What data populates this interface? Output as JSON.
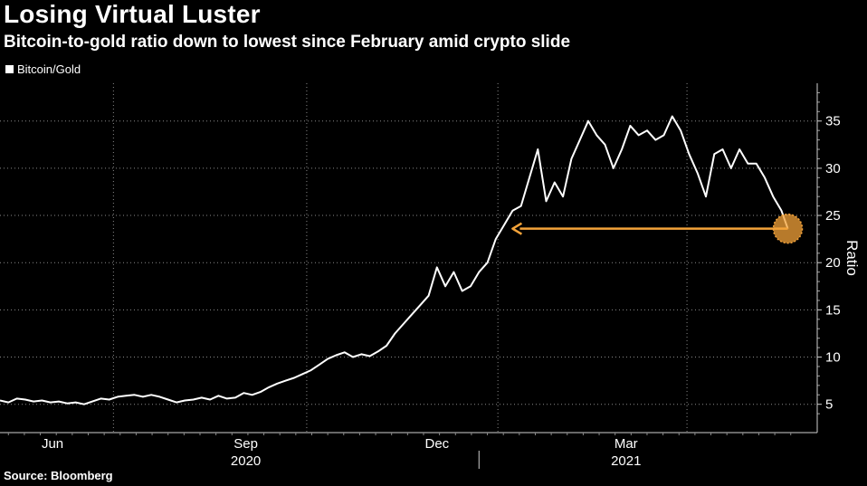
{
  "header": {
    "title": "Losing Virtual Luster",
    "subtitle": "Bitcoin-to-gold ratio down to lowest since February amid crypto slide"
  },
  "legend": {
    "label": "Bitcoin/Gold",
    "color": "#ffffff"
  },
  "footer": {
    "source": "Source: Bloomberg"
  },
  "chart_data": {
    "type": "line",
    "title": "Losing Virtual Luster",
    "subtitle": "Bitcoin-to-gold ratio down to lowest since February amid crypto slide",
    "ylabel": "Ratio",
    "xlabel": "",
    "ylim": [
      2,
      39
    ],
    "y_ticks": [
      5,
      10,
      15,
      20,
      25,
      30,
      35
    ],
    "x_ticks": [
      {
        "label": "Jun",
        "x": 11
      },
      {
        "label": "Sep",
        "x": 103
      },
      {
        "label": "Dec",
        "x": 194
      },
      {
        "label": "Mar",
        "x": 284
      }
    ],
    "x_gridlines": [
      40,
      132,
      223,
      313
    ],
    "years": [
      {
        "label": "2020",
        "x": 103
      },
      {
        "label": "2021",
        "x": 284
      }
    ],
    "year_divider_x": 214,
    "xlim": [
      -14,
      375
    ],
    "series": [
      {
        "name": "Bitcoin/Gold",
        "color": "#ffffff",
        "x": [
          -14,
          -10,
          -6,
          -2,
          2,
          6,
          10,
          14,
          18,
          22,
          26,
          30,
          34,
          38,
          42,
          46,
          50,
          54,
          58,
          62,
          66,
          70,
          74,
          78,
          82,
          86,
          90,
          94,
          98,
          102,
          106,
          110,
          114,
          118,
          122,
          126,
          130,
          134,
          138,
          142,
          146,
          150,
          154,
          158,
          162,
          166,
          170,
          174,
          178,
          182,
          186,
          190,
          194,
          198,
          202,
          206,
          210,
          214,
          218,
          222,
          226,
          230,
          234,
          238,
          242,
          246,
          250,
          254,
          258,
          262,
          266,
          270,
          274,
          278,
          282,
          286,
          290,
          294,
          298,
          302,
          306,
          310,
          314,
          318,
          322,
          326,
          330,
          334,
          338,
          342,
          346,
          350,
          354,
          358,
          361
        ],
        "values": [
          5.4,
          5.2,
          5.6,
          5.5,
          5.3,
          5.4,
          5.2,
          5.3,
          5.1,
          5.2,
          5.0,
          5.3,
          5.6,
          5.5,
          5.8,
          5.9,
          6.0,
          5.8,
          6.0,
          5.8,
          5.5,
          5.2,
          5.4,
          5.5,
          5.7,
          5.5,
          5.9,
          5.6,
          5.7,
          6.2,
          6.0,
          6.3,
          6.8,
          7.2,
          7.5,
          7.8,
          8.2,
          8.6,
          9.2,
          9.8,
          10.2,
          10.5,
          10.0,
          10.3,
          10.1,
          10.6,
          11.2,
          12.5,
          13.5,
          14.5,
          15.5,
          16.5,
          19.5,
          17.5,
          19.0,
          17.0,
          17.5,
          19.0,
          20.0,
          22.5,
          24.0,
          25.5,
          26.0,
          29.0,
          32.0,
          26.5,
          28.5,
          27.0,
          31.0,
          33.0,
          35.0,
          33.5,
          32.5,
          30.0,
          32.0,
          34.5,
          33.5,
          34.0,
          33.0,
          33.5,
          35.5,
          34.0,
          31.5,
          29.5,
          27.0,
          31.5,
          32.0,
          30.0,
          32.0,
          30.5,
          30.5,
          29.0,
          27.0,
          25.5,
          23.6
        ]
      }
    ],
    "annotation": {
      "type": "arrow",
      "value": 23.6,
      "from_x": 361,
      "to_x": 230,
      "color": "#f4a33a",
      "marker_at_x": 361
    }
  }
}
